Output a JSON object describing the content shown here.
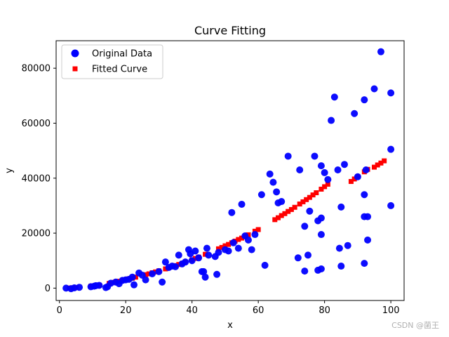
{
  "chart_data": {
    "type": "scatter",
    "title": "Curve Fitting",
    "xlabel": "x",
    "ylabel": "y",
    "xlim": [
      -1,
      104
    ],
    "ylim": [
      -4500,
      90000
    ],
    "xticks": [
      0,
      20,
      40,
      60,
      80,
      100
    ],
    "yticks": [
      0,
      20000,
      40000,
      60000,
      80000
    ],
    "legend_position": "top-left",
    "series": [
      {
        "name": "Original Data",
        "color": "#0000ff",
        "marker": "circle",
        "points": [
          [
            2,
            0
          ],
          [
            3.5,
            -200
          ],
          [
            4.5,
            100
          ],
          [
            6,
            300
          ],
          [
            9.5,
            500
          ],
          [
            10.5,
            700
          ],
          [
            11,
            900
          ],
          [
            12,
            1000
          ],
          [
            14,
            200
          ],
          [
            14.5,
            500
          ],
          [
            15.5,
            1800
          ],
          [
            17,
            2200
          ],
          [
            18,
            1600
          ],
          [
            19,
            2800
          ],
          [
            20,
            3000
          ],
          [
            21,
            3200
          ],
          [
            22,
            4000
          ],
          [
            22.5,
            1200
          ],
          [
            24,
            5500
          ],
          [
            25,
            4700
          ],
          [
            26,
            3000
          ],
          [
            28,
            5200
          ],
          [
            30,
            6000
          ],
          [
            31,
            2200
          ],
          [
            32,
            9500
          ],
          [
            33,
            7500
          ],
          [
            34,
            8000
          ],
          [
            35,
            7800
          ],
          [
            36,
            12000
          ],
          [
            37,
            8800
          ],
          [
            38,
            9500
          ],
          [
            39,
            14000
          ],
          [
            39.5,
            12500
          ],
          [
            40,
            10000
          ],
          [
            41,
            13500
          ],
          [
            42,
            11000
          ],
          [
            43,
            6000
          ],
          [
            43.5,
            6000
          ],
          [
            44,
            4000
          ],
          [
            44.5,
            14500
          ],
          [
            45,
            12000
          ],
          [
            47,
            11500
          ],
          [
            47.5,
            5000
          ],
          [
            48,
            13000
          ],
          [
            50,
            14000
          ],
          [
            51,
            13500
          ],
          [
            52,
            27500
          ],
          [
            52.5,
            16500
          ],
          [
            54,
            14500
          ],
          [
            55,
            30500
          ],
          [
            56,
            19000
          ],
          [
            57,
            17500
          ],
          [
            58,
            14000
          ],
          [
            59,
            19500
          ],
          [
            62,
            8300
          ],
          [
            61,
            34000
          ],
          [
            63.5,
            41500
          ],
          [
            64.5,
            38500
          ],
          [
            65.5,
            35000
          ],
          [
            66,
            31000
          ],
          [
            67,
            31500
          ],
          [
            69,
            48000
          ],
          [
            72,
            11000
          ],
          [
            72.5,
            43000
          ],
          [
            74,
            6200
          ],
          [
            74,
            22500
          ],
          [
            75,
            12000
          ],
          [
            75.5,
            28000
          ],
          [
            77,
            48000
          ],
          [
            78,
            6500
          ],
          [
            78,
            24500
          ],
          [
            79,
            7000
          ],
          [
            79,
            19500
          ],
          [
            79,
            25500
          ],
          [
            79,
            44500
          ],
          [
            80,
            42000
          ],
          [
            81,
            39500
          ],
          [
            82,
            61000
          ],
          [
            83,
            69500
          ],
          [
            84,
            43000
          ],
          [
            84.5,
            14500
          ],
          [
            85,
            8000
          ],
          [
            85,
            29500
          ],
          [
            86,
            45000
          ],
          [
            87,
            15500
          ],
          [
            89,
            63500
          ],
          [
            90,
            40500
          ],
          [
            92,
            68500
          ],
          [
            92,
            34000
          ],
          [
            92,
            9000
          ],
          [
            92,
            26000
          ],
          [
            92.5,
            43000
          ],
          [
            93,
            17500
          ],
          [
            93,
            26000
          ],
          [
            95,
            72500
          ],
          [
            97,
            86000
          ],
          [
            100,
            71000
          ],
          [
            100,
            50500
          ],
          [
            100,
            30000
          ]
        ]
      },
      {
        "name": "Fitted Curve",
        "color": "#ff0000",
        "marker": "square",
        "points": [
          [
            3,
            0
          ],
          [
            3.5,
            50
          ],
          [
            4,
            120
          ],
          [
            5,
            200
          ],
          [
            9.5,
            700
          ],
          [
            10.5,
            800
          ],
          [
            11,
            900
          ],
          [
            12,
            1000
          ],
          [
            15,
            1700
          ],
          [
            16.5,
            2100
          ],
          [
            17,
            2300
          ],
          [
            18,
            2500
          ],
          [
            19,
            2800
          ],
          [
            19.5,
            3000
          ],
          [
            20,
            3100
          ],
          [
            21,
            3400
          ],
          [
            22,
            3600
          ],
          [
            23,
            4000
          ],
          [
            26,
            4900
          ],
          [
            27,
            5200
          ],
          [
            28,
            5600
          ],
          [
            29,
            5900
          ],
          [
            30,
            6300
          ],
          [
            32,
            7000
          ],
          [
            33,
            7400
          ],
          [
            34,
            7800
          ],
          [
            35,
            8200
          ],
          [
            36,
            8600
          ],
          [
            37,
            9000
          ],
          [
            38,
            9500
          ],
          [
            40,
            10300
          ],
          [
            41,
            10800
          ],
          [
            42,
            11300
          ],
          [
            44,
            12300
          ],
          [
            48,
            14300
          ],
          [
            49,
            14800
          ],
          [
            50,
            15400
          ],
          [
            51,
            15900
          ],
          [
            52,
            16500
          ],
          [
            53,
            17100
          ],
          [
            54,
            17700
          ],
          [
            55,
            18200
          ],
          [
            56,
            18800
          ],
          [
            57,
            19400
          ],
          [
            59,
            20700
          ],
          [
            60,
            21300
          ],
          [
            65,
            24900
          ],
          [
            66,
            25600
          ],
          [
            67,
            26400
          ],
          [
            68,
            27100
          ],
          [
            69,
            27900
          ],
          [
            70,
            28600
          ],
          [
            71,
            29400
          ],
          [
            72.5,
            30600
          ],
          [
            73.5,
            31400
          ],
          [
            74.5,
            32200
          ],
          [
            75.5,
            33000
          ],
          [
            76.5,
            33900
          ],
          [
            77.5,
            34700
          ],
          [
            79,
            36000
          ],
          [
            80,
            36900
          ],
          [
            81,
            37800
          ],
          [
            88,
            38800
          ],
          [
            89,
            39700
          ],
          [
            90,
            40600
          ],
          [
            92,
            42300
          ],
          [
            93,
            43200
          ],
          [
            95,
            44000
          ],
          [
            96,
            44800
          ],
          [
            97,
            45500
          ],
          [
            98,
            46300
          ]
        ]
      }
    ]
  },
  "watermark": "CSDN @菌王"
}
